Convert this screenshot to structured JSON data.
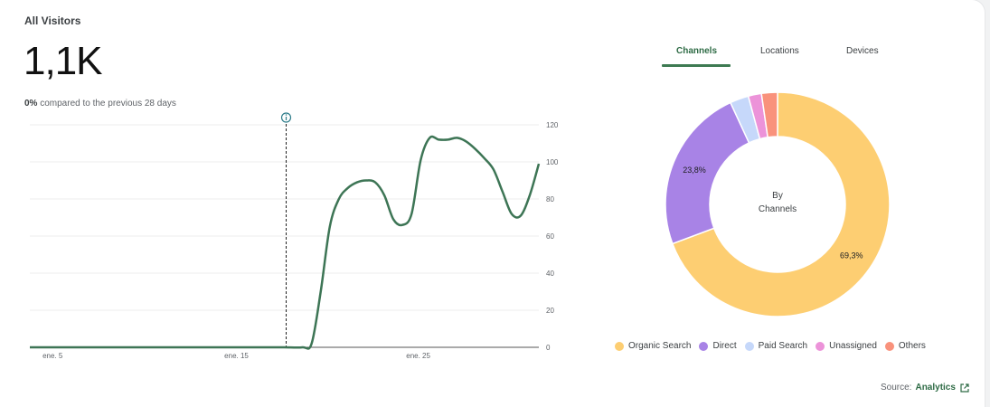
{
  "card": {
    "title": "All Visitors",
    "total": "1,1K",
    "change_value": "0%",
    "change_text": " compared to the previous 28 days"
  },
  "tabs": [
    {
      "label": "Channels",
      "active": true
    },
    {
      "label": "Locations",
      "active": false
    },
    {
      "label": "Devices",
      "active": false
    }
  ],
  "colors": {
    "line": "#3d7555",
    "organic": "#fdce72",
    "direct": "#a883e6",
    "paid": "#c6d8fa",
    "unassigned": "#ec93d9",
    "others": "#f9927c"
  },
  "chart_data": [
    {
      "type": "line",
      "title": "",
      "xlabel": "",
      "ylabel": "",
      "y_axis_side": "right",
      "ylim": [
        0,
        120
      ],
      "yticks": [
        0,
        20,
        40,
        60,
        80,
        100,
        120
      ],
      "x_tick_labels": [
        {
          "day": 5,
          "label": "ene. 5"
        },
        {
          "day": 15,
          "label": "ene. 15"
        },
        {
          "day": 25,
          "label": "ene. 25"
        }
      ],
      "x_range": [
        4,
        32
      ],
      "marker": {
        "day": 18.1,
        "icon": "info-icon"
      },
      "series": [
        {
          "name": "Visitors",
          "x": [
            4,
            5,
            6,
            7,
            8,
            9,
            10,
            11,
            12,
            13,
            14,
            15,
            16,
            17,
            18,
            19,
            19.5,
            20,
            20.5,
            21,
            21.5,
            22,
            22.5,
            23,
            23.5,
            24,
            24.5,
            25,
            25.5,
            26,
            26.5,
            27,
            27.5,
            28,
            28.5,
            29,
            29.5,
            30,
            30.5,
            31,
            31.5,
            32
          ],
          "values": [
            0,
            0,
            0,
            0,
            0,
            0,
            0,
            0,
            0,
            0,
            0,
            0,
            0,
            0,
            0,
            0,
            2,
            30,
            65,
            80,
            86,
            89,
            90,
            89,
            82,
            69,
            66,
            72,
            101,
            113,
            112,
            112,
            113,
            111,
            107,
            102,
            96,
            84,
            72,
            71,
            82,
            99
          ]
        }
      ]
    },
    {
      "type": "pie",
      "title": "By Channels",
      "center_line1": "By",
      "center_line2": "Channels",
      "categories": [
        "Organic Search",
        "Direct",
        "Paid Search",
        "Unassigned",
        "Others"
      ],
      "values": [
        69.3,
        23.8,
        2.7,
        1.9,
        2.3
      ],
      "labels": [
        "69,3%",
        "23,8%",
        "",
        "",
        ""
      ]
    }
  ],
  "source": {
    "label": "Source:",
    "link": "Analytics"
  }
}
